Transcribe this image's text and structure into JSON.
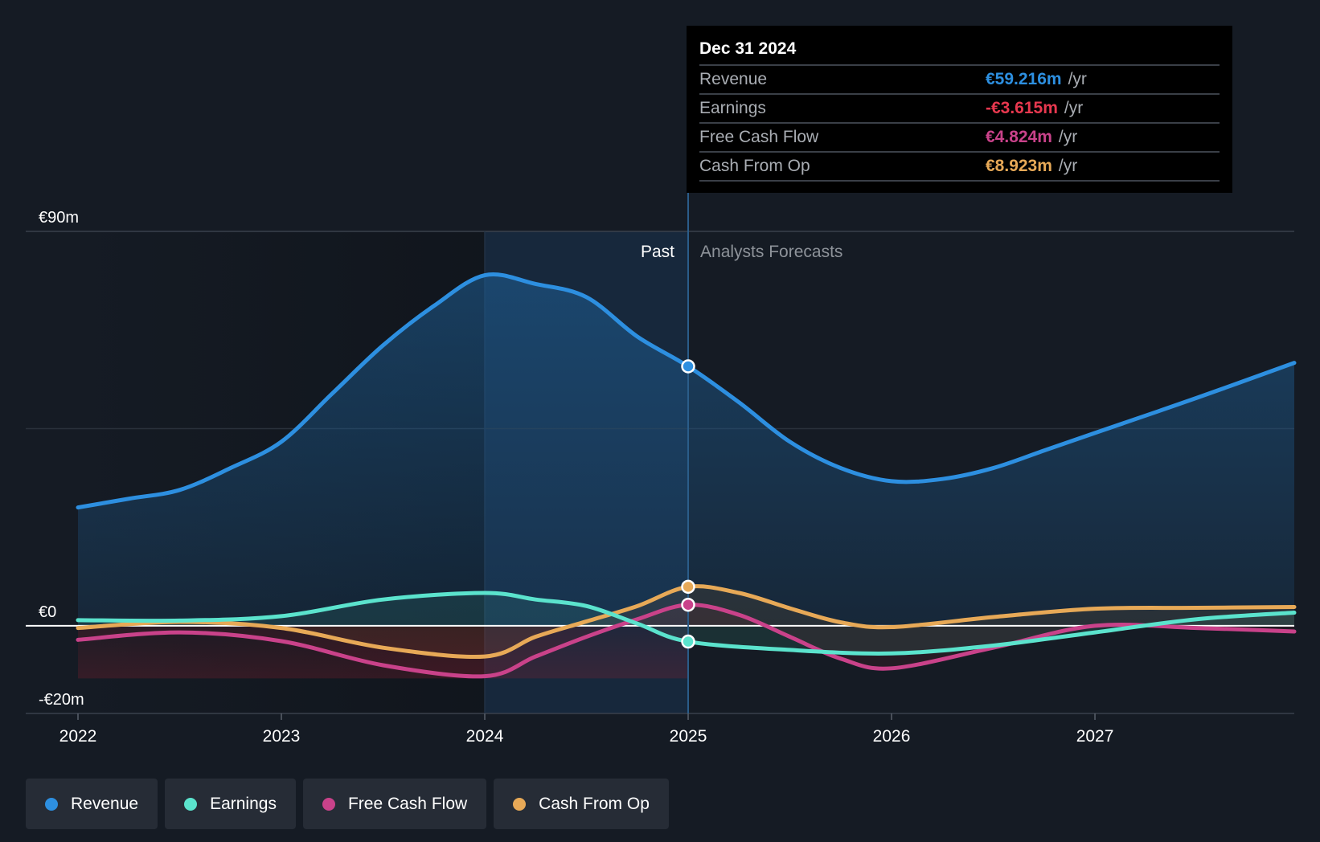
{
  "chart_data": {
    "type": "line",
    "x_ticks": [
      "2022",
      "2023",
      "2024",
      "2025",
      "2026",
      "2027"
    ],
    "y_axis_labels": [
      "€90m",
      "€0",
      "-€20m"
    ],
    "ylim": [
      -20,
      90
    ],
    "xlim": [
      2022.0,
      2027.98
    ],
    "past_label": "Past",
    "forecast_label": "Analysts Forecasts",
    "divider_x": 2025.0,
    "series": [
      {
        "name": "Revenue",
        "color": "#2d8fe0",
        "points": [
          [
            2022.0,
            27
          ],
          [
            2022.25,
            29
          ],
          [
            2022.5,
            31
          ],
          [
            2022.75,
            36
          ],
          [
            2023.0,
            42
          ],
          [
            2023.25,
            53
          ],
          [
            2023.5,
            64
          ],
          [
            2023.75,
            73
          ],
          [
            2024.0,
            80
          ],
          [
            2024.25,
            78
          ],
          [
            2024.5,
            75
          ],
          [
            2024.75,
            66
          ],
          [
            2025.0,
            59.2
          ],
          [
            2025.25,
            51
          ],
          [
            2025.5,
            42
          ],
          [
            2025.75,
            36
          ],
          [
            2026.0,
            33
          ],
          [
            2026.25,
            33.5
          ],
          [
            2026.5,
            36
          ],
          [
            2026.75,
            40
          ],
          [
            2027.0,
            44
          ],
          [
            2027.5,
            52
          ],
          [
            2027.98,
            60
          ]
        ]
      },
      {
        "name": "Earnings",
        "color": "#5be3cd",
        "points": [
          [
            2022.0,
            1.3
          ],
          [
            2022.5,
            1.2
          ],
          [
            2023.0,
            2.2
          ],
          [
            2023.5,
            6.0
          ],
          [
            2024.0,
            7.5
          ],
          [
            2024.25,
            6.0
          ],
          [
            2024.5,
            4.5
          ],
          [
            2024.75,
            0.5
          ],
          [
            2025.0,
            -3.6
          ],
          [
            2025.5,
            -5.5
          ],
          [
            2026.0,
            -6.3
          ],
          [
            2026.5,
            -4.5
          ],
          [
            2027.0,
            -1.5
          ],
          [
            2027.5,
            1.5
          ],
          [
            2027.98,
            3.0
          ]
        ]
      },
      {
        "name": "Free Cash Flow",
        "color": "#c9428a",
        "points": [
          [
            2022.0,
            -3.2
          ],
          [
            2022.5,
            -1.5
          ],
          [
            2023.0,
            -3.5
          ],
          [
            2023.5,
            -9.0
          ],
          [
            2024.0,
            -11.5
          ],
          [
            2024.25,
            -7.0
          ],
          [
            2024.5,
            -2.5
          ],
          [
            2024.75,
            1.5
          ],
          [
            2025.0,
            4.8
          ],
          [
            2025.25,
            2.5
          ],
          [
            2025.5,
            -2.5
          ],
          [
            2025.75,
            -7.5
          ],
          [
            2026.0,
            -9.7
          ],
          [
            2026.5,
            -5.0
          ],
          [
            2027.0,
            0.0
          ],
          [
            2027.5,
            -0.5
          ],
          [
            2027.98,
            -1.3
          ]
        ]
      },
      {
        "name": "Cash From Op",
        "color": "#e7a957",
        "points": [
          [
            2022.0,
            -0.5
          ],
          [
            2022.5,
            0.9
          ],
          [
            2023.0,
            -0.5
          ],
          [
            2023.5,
            -5.0
          ],
          [
            2024.0,
            -7.0
          ],
          [
            2024.25,
            -2.5
          ],
          [
            2024.5,
            1.0
          ],
          [
            2024.75,
            4.5
          ],
          [
            2025.0,
            8.9
          ],
          [
            2025.25,
            7.5
          ],
          [
            2025.5,
            4.0
          ],
          [
            2025.75,
            0.8
          ],
          [
            2026.0,
            -0.3
          ],
          [
            2026.5,
            2.0
          ],
          [
            2027.0,
            3.9
          ],
          [
            2027.5,
            4.1
          ],
          [
            2027.98,
            4.3
          ]
        ]
      }
    ]
  },
  "tooltip": {
    "date": "Dec 31 2024",
    "rows": [
      {
        "label": "Revenue",
        "value": "€59.216m",
        "unit": "/yr",
        "color": "#2d8fe0"
      },
      {
        "label": "Earnings",
        "value": "-€3.615m",
        "unit": "/yr",
        "color": "#e8384f"
      },
      {
        "label": "Free Cash Flow",
        "value": "€4.824m",
        "unit": "/yr",
        "color": "#c9428a"
      },
      {
        "label": "Cash From Op",
        "value": "€8.923m",
        "unit": "/yr",
        "color": "#e7a957"
      }
    ]
  },
  "legend": [
    {
      "label": "Revenue",
      "color": "#2d8fe0"
    },
    {
      "label": "Earnings",
      "color": "#5be3cd"
    },
    {
      "label": "Free Cash Flow",
      "color": "#c9428a"
    },
    {
      "label": "Cash From Op",
      "color": "#e7a957"
    }
  ]
}
